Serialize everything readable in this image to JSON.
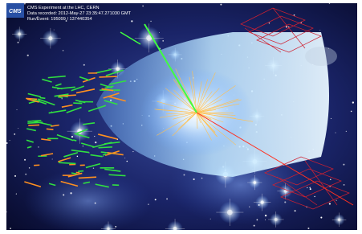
{
  "logo": "CMS",
  "header": {
    "lines": [
      "CMS Experiment at the LHC, CERN",
      "Data recorded: 2012-May-27 23:35:47.271030 GMT",
      "Run/Event: 195099 / 137440354"
    ]
  }
}
